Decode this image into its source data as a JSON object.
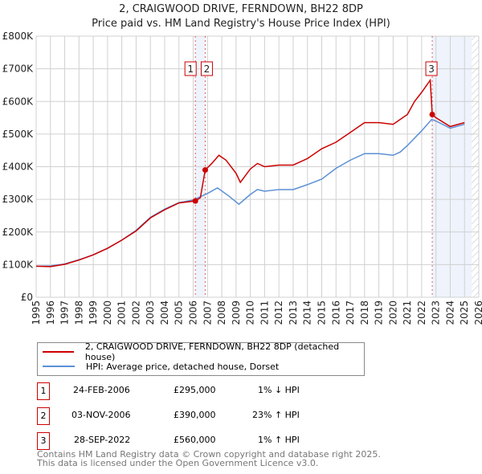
{
  "title": "2, CRAIGWOOD DRIVE, FERNDOWN, BH22 8DP",
  "subtitle": "Price paid vs. HM Land Registry's House Price Index (HPI)",
  "chart_data": {
    "type": "line",
    "title": "2, CRAIGWOOD DRIVE, FERNDOWN, BH22 8DP",
    "subtitle": "Price paid vs. HM Land Registry's House Price Index (HPI)",
    "xlim": [
      1995,
      2026
    ],
    "ylim": [
      0,
      800000
    ],
    "x_ticks": [
      "1995",
      "1996",
      "1997",
      "1998",
      "1999",
      "2000",
      "2001",
      "2002",
      "2003",
      "2004",
      "2005",
      "2006",
      "2007",
      "2008",
      "2009",
      "2010",
      "2011",
      "2012",
      "2013",
      "2014",
      "2015",
      "2016",
      "2017",
      "2018",
      "2019",
      "2020",
      "2021",
      "2022",
      "2023",
      "2024",
      "2025",
      "2026"
    ],
    "y_ticks": [
      "£0",
      "£100K",
      "£200K",
      "£300K",
      "£400K",
      "£500K",
      "£600K",
      "£700K",
      "£800K"
    ],
    "series": [
      {
        "name": "2, CRAIGWOOD DRIVE, FERNDOWN, BH22 8DP (detached house)",
        "color": "#cc0000",
        "points": [
          [
            1995,
            95000
          ],
          [
            1996,
            94000
          ],
          [
            1997,
            101000
          ],
          [
            1998,
            114000
          ],
          [
            1999,
            130000
          ],
          [
            2000,
            150000
          ],
          [
            2001,
            175000
          ],
          [
            2002,
            203000
          ],
          [
            2003,
            243000
          ],
          [
            2004,
            268000
          ],
          [
            2005,
            289000
          ],
          [
            2006.15,
            295000
          ],
          [
            2006.5,
            305000
          ],
          [
            2006.84,
            390000
          ],
          [
            2007.3,
            410000
          ],
          [
            2007.8,
            435000
          ],
          [
            2008.3,
            420000
          ],
          [
            2009,
            380000
          ],
          [
            2009.3,
            352000
          ],
          [
            2010,
            393000
          ],
          [
            2010.5,
            410000
          ],
          [
            2011,
            400000
          ],
          [
            2012,
            405000
          ],
          [
            2013,
            405000
          ],
          [
            2014,
            425000
          ],
          [
            2015,
            455000
          ],
          [
            2016,
            475000
          ],
          [
            2017,
            505000
          ],
          [
            2018,
            535000
          ],
          [
            2019,
            535000
          ],
          [
            2020,
            530000
          ],
          [
            2021,
            560000
          ],
          [
            2021.5,
            600000
          ],
          [
            2022,
            628000
          ],
          [
            2022.6,
            665000
          ],
          [
            2022.74,
            560000
          ],
          [
            2023,
            550000
          ],
          [
            2024,
            523000
          ],
          [
            2025,
            535000
          ]
        ]
      },
      {
        "name": "HPI: Average price, detached house, Dorset",
        "color": "#5b8fd6",
        "points": [
          [
            1995,
            95000
          ],
          [
            1996,
            96000
          ],
          [
            1997,
            102000
          ],
          [
            1998,
            115000
          ],
          [
            1999,
            130000
          ],
          [
            2000,
            150000
          ],
          [
            2001,
            175000
          ],
          [
            2002,
            205000
          ],
          [
            2003,
            245000
          ],
          [
            2004,
            270000
          ],
          [
            2005,
            290000
          ],
          [
            2006,
            298000
          ],
          [
            2007,
            318000
          ],
          [
            2007.7,
            335000
          ],
          [
            2008.5,
            310000
          ],
          [
            2009.2,
            285000
          ],
          [
            2010,
            315000
          ],
          [
            2010.5,
            330000
          ],
          [
            2011,
            325000
          ],
          [
            2012,
            330000
          ],
          [
            2013,
            330000
          ],
          [
            2014,
            345000
          ],
          [
            2015,
            362000
          ],
          [
            2016,
            395000
          ],
          [
            2017,
            420000
          ],
          [
            2018,
            440000
          ],
          [
            2019,
            440000
          ],
          [
            2020,
            435000
          ],
          [
            2020.5,
            445000
          ],
          [
            2021,
            465000
          ],
          [
            2022,
            510000
          ],
          [
            2022.7,
            545000
          ],
          [
            2023,
            540000
          ],
          [
            2024,
            518000
          ],
          [
            2025,
            530000
          ]
        ]
      }
    ],
    "sales": [
      {
        "label": "1",
        "x": 2006.15,
        "y": 295000
      },
      {
        "label": "2",
        "x": 2006.84,
        "y": 390000
      },
      {
        "label": "3",
        "x": 2022.74,
        "y": 560000
      }
    ],
    "future_hatch_from": 2025.5
  },
  "legend": [
    "2, CRAIGWOOD DRIVE, FERNDOWN, BH22 8DP (detached house)",
    "HPI: Average price, detached house, Dorset"
  ],
  "transactions": [
    {
      "num": "1",
      "date": "24-FEB-2006",
      "price": "£295,000",
      "hpi": "1% ↓ HPI"
    },
    {
      "num": "2",
      "date": "03-NOV-2006",
      "price": "£390,000",
      "hpi": "23% ↑ HPI"
    },
    {
      "num": "3",
      "date": "28-SEP-2022",
      "price": "£560,000",
      "hpi": "1% ↑ HPI"
    }
  ],
  "footer": [
    "Contains HM Land Registry data © Crown copyright and database right 2025.",
    "This data is licensed under the Open Government Licence v3.0."
  ]
}
